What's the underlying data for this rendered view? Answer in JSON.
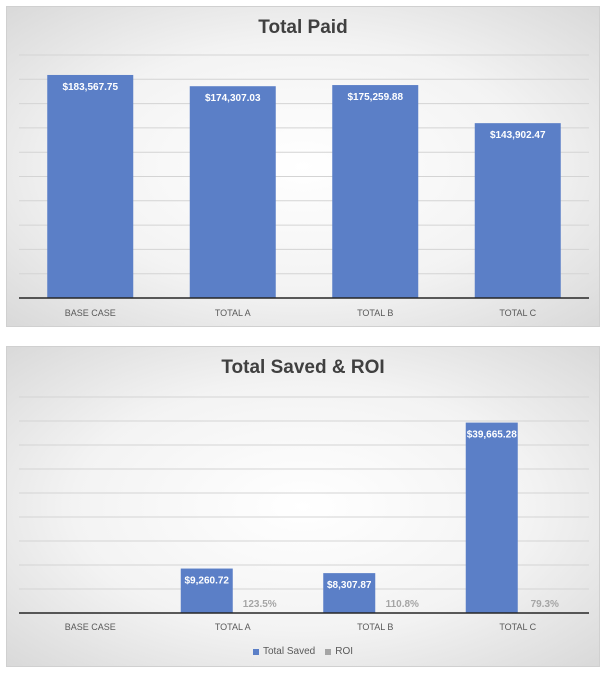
{
  "chart_data": [
    {
      "type": "bar",
      "title": "Total Paid",
      "categories": [
        "BASE CASE",
        "TOTAL A",
        "TOTAL B",
        "TOTAL C"
      ],
      "series": [
        {
          "values": [
            183567.75,
            174307.03,
            175259.88,
            143902.47
          ],
          "labels": [
            "$183,567.75",
            "$174,307.03",
            "$175,259.88",
            "$143,902.47"
          ],
          "color": "#5b7fc7"
        }
      ],
      "ylim": [
        0,
        200000
      ],
      "grid": true,
      "legend": "none"
    },
    {
      "type": "bar",
      "title": "Total Saved & ROI",
      "categories": [
        "BASE CASE",
        "TOTAL A",
        "TOTAL B",
        "TOTAL C"
      ],
      "series": [
        {
          "name": "Total Saved",
          "values": [
            0,
            9260.72,
            8307.87,
            39665.28
          ],
          "labels": [
            "",
            "$9,260.72",
            "$8,307.87",
            "$39,665.28"
          ],
          "color": "#5b7fc7"
        },
        {
          "name": "ROI",
          "values": [
            0,
            1.235,
            1.108,
            0.793
          ],
          "labels": [
            "",
            "123.5%",
            "110.8%",
            "79.3%"
          ],
          "color": "#a5a5a5"
        }
      ],
      "ylim": [
        0,
        45000
      ],
      "grid": true,
      "legend": "bottom"
    }
  ]
}
